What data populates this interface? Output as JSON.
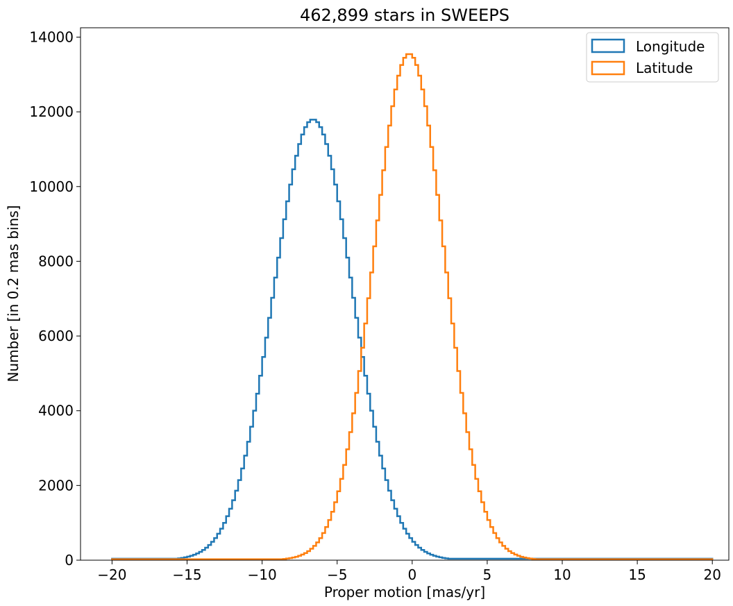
{
  "chart_data": {
    "type": "histogram",
    "title": "462,899 stars in SWEEPS",
    "xlabel": "Proper motion [mas/yr]",
    "ylabel": "Number [in 0.2 mas bins]",
    "xlim": [
      -22.1,
      21.1
    ],
    "ylim": [
      0,
      14250
    ],
    "bin_width": 0.2,
    "x_range": [
      -20,
      20
    ],
    "xticks": [
      -20,
      -15,
      -10,
      -5,
      0,
      5,
      10,
      15,
      20
    ],
    "xtick_labels": [
      "−20",
      "−15",
      "−10",
      "−5",
      "0",
      "5",
      "10",
      "15",
      "20"
    ],
    "yticks": [
      0,
      2000,
      4000,
      6000,
      8000,
      10000,
      12000,
      14000
    ],
    "ytick_labels": [
      "0",
      "2000",
      "4000",
      "6000",
      "8000",
      "10000",
      "12000",
      "14000"
    ],
    "grid": false,
    "legend_position": "top-right",
    "series": [
      {
        "name": "Longitude",
        "color": "#1f77b4",
        "peak_center": -6.6,
        "peak_value": 11750,
        "sigma": 2.65,
        "background": 40
      },
      {
        "name": "Latitude",
        "color": "#ff7f0e",
        "peak_center": -0.2,
        "peak_value": 13500,
        "sigma": 2.35,
        "background": 25
      }
    ]
  }
}
